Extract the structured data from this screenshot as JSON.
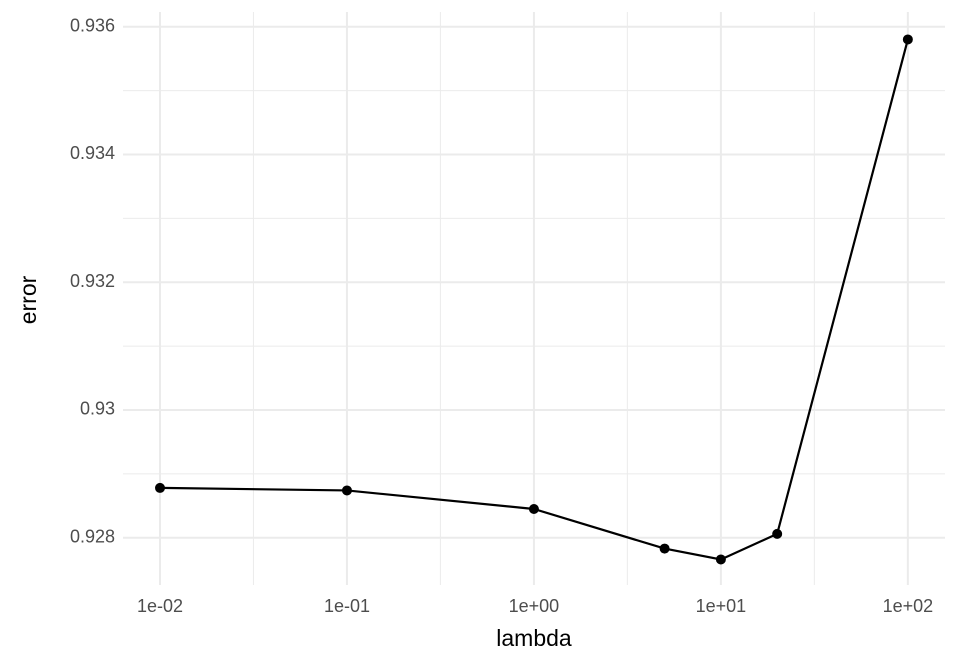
{
  "chart_data": {
    "type": "line",
    "x_label": "lambda",
    "y_label": "error",
    "x": [
      0.01,
      0.1,
      1,
      5,
      10,
      20,
      100
    ],
    "series": [
      {
        "color": "#000000",
        "values": [
          0.92878,
          0.92874,
          0.92845,
          0.92783,
          0.92766,
          0.92806,
          0.9358
        ]
      }
    ],
    "x_log": true,
    "xlim": [
      0.00634,
      158
    ],
    "ylim": [
      0.92726,
      0.93623
    ],
    "xticks": [
      {
        "value": 0.01,
        "label": "1e-02"
      },
      {
        "value": 0.1,
        "label": "1e-01"
      },
      {
        "value": 1,
        "label": "1e+00"
      },
      {
        "value": 10,
        "label": "1e+01"
      },
      {
        "value": 100,
        "label": "1e+02"
      }
    ],
    "yticks": [
      0.928,
      0.93,
      0.932,
      0.934,
      0.936
    ],
    "xminor": [
      0.0316,
      0.316,
      3.16,
      31.6
    ],
    "yminor": [
      0.929,
      0.931,
      0.933,
      0.935
    ],
    "grid": true
  }
}
